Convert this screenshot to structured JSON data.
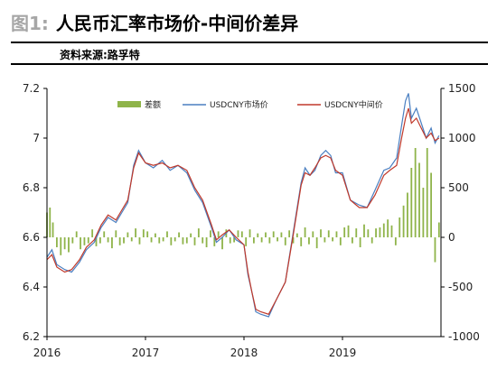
{
  "header": {
    "fig_label": "图1:",
    "title": "人民币汇率市场价-中间价差异",
    "source": "资料来源:路孚特"
  },
  "chart_data": {
    "type": "line",
    "legend": [
      "差额",
      "USDCNY市场价",
      "USDCNY中间价"
    ],
    "colors": {
      "diff": "#8fb44a",
      "market": "#4a7fc1",
      "central": "#c0392b"
    },
    "x_range": [
      2016.0,
      2020.0
    ],
    "x_ticks": [
      {
        "value": 2016,
        "label": "2016"
      },
      {
        "value": 2017,
        "label": "2017"
      },
      {
        "value": 2018,
        "label": "2018"
      },
      {
        "value": 2019,
        "label": "2019"
      }
    ],
    "y_left": {
      "ylim": [
        6.2,
        7.2
      ],
      "ticks": [
        "7.2",
        "7",
        "6.8",
        "6.6",
        "6.4",
        "6.2"
      ],
      "tick_values": [
        7.2,
        7.0,
        6.8,
        6.6,
        6.4,
        6.2
      ]
    },
    "y_right": {
      "ylim": [
        -1000,
        1500
      ],
      "ticks": [
        "1500",
        "1000",
        "500",
        "0",
        "-500",
        "-1000"
      ],
      "tick_values": [
        1500,
        1000,
        500,
        0,
        -500,
        -1000
      ]
    },
    "rate_series": {
      "x": [
        2016.0,
        2016.05,
        2016.1,
        2016.18,
        2016.25,
        2016.33,
        2016.4,
        2016.48,
        2016.55,
        2016.62,
        2016.7,
        2016.76,
        2016.82,
        2016.88,
        2016.93,
        2017.0,
        2017.08,
        2017.17,
        2017.25,
        2017.33,
        2017.42,
        2017.5,
        2017.58,
        2017.67,
        2017.72,
        2017.78,
        2017.85,
        2017.92,
        2018.0,
        2018.04,
        2018.08,
        2018.12,
        2018.17,
        2018.25,
        2018.33,
        2018.42,
        2018.5,
        2018.58,
        2018.62,
        2018.67,
        2018.72,
        2018.78,
        2018.83,
        2018.88,
        2018.93,
        2019.0,
        2019.08,
        2019.17,
        2019.25,
        2019.33,
        2019.42,
        2019.48,
        2019.55,
        2019.6,
        2019.64,
        2019.67,
        2019.7,
        2019.75,
        2019.8,
        2019.85,
        2019.9,
        2019.94,
        2019.98
      ],
      "market": [
        6.52,
        6.55,
        6.49,
        6.47,
        6.46,
        6.5,
        6.55,
        6.58,
        6.64,
        6.68,
        6.66,
        6.7,
        6.74,
        6.89,
        6.95,
        6.9,
        6.88,
        6.91,
        6.87,
        6.89,
        6.86,
        6.79,
        6.74,
        6.64,
        6.58,
        6.6,
        6.63,
        6.59,
        6.57,
        6.45,
        6.38,
        6.3,
        6.29,
        6.28,
        6.35,
        6.42,
        6.62,
        6.82,
        6.88,
        6.85,
        6.87,
        6.93,
        6.95,
        6.93,
        6.86,
        6.86,
        6.75,
        6.73,
        6.72,
        6.79,
        6.87,
        6.88,
        6.92,
        7.05,
        7.15,
        7.18,
        7.08,
        7.12,
        7.06,
        7.0,
        7.04,
        6.98,
        7.01
      ],
      "central": [
        6.51,
        6.53,
        6.48,
        6.46,
        6.47,
        6.51,
        6.56,
        6.59,
        6.65,
        6.69,
        6.67,
        6.71,
        6.75,
        6.88,
        6.94,
        6.9,
        6.89,
        6.9,
        6.88,
        6.89,
        6.87,
        6.8,
        6.75,
        6.65,
        6.59,
        6.61,
        6.63,
        6.6,
        6.57,
        6.46,
        6.38,
        6.31,
        6.3,
        6.29,
        6.35,
        6.42,
        6.61,
        6.81,
        6.86,
        6.85,
        6.88,
        6.92,
        6.93,
        6.92,
        6.87,
        6.85,
        6.75,
        6.72,
        6.72,
        6.77,
        6.85,
        6.87,
        6.89,
        7.0,
        7.08,
        7.12,
        7.06,
        7.08,
        7.04,
        7.0,
        7.02,
        6.99,
        7.0
      ]
    },
    "diff_series": {
      "x": [
        2016.0,
        2016.03,
        2016.06,
        2016.1,
        2016.14,
        2016.18,
        2016.22,
        2016.26,
        2016.3,
        2016.34,
        2016.38,
        2016.42,
        2016.46,
        2016.5,
        2016.54,
        2016.58,
        2016.62,
        2016.66,
        2016.7,
        2016.74,
        2016.78,
        2016.82,
        2016.86,
        2016.9,
        2016.94,
        2016.98,
        2017.02,
        2017.06,
        2017.1,
        2017.14,
        2017.18,
        2017.22,
        2017.26,
        2017.3,
        2017.34,
        2017.38,
        2017.42,
        2017.46,
        2017.5,
        2017.54,
        2017.58,
        2017.62,
        2017.66,
        2017.7,
        2017.74,
        2017.78,
        2017.82,
        2017.86,
        2017.9,
        2017.94,
        2017.98,
        2018.02,
        2018.06,
        2018.1,
        2018.14,
        2018.18,
        2018.22,
        2018.26,
        2018.3,
        2018.34,
        2018.38,
        2018.42,
        2018.46,
        2018.5,
        2018.54,
        2018.58,
        2018.62,
        2018.66,
        2018.7,
        2018.74,
        2018.78,
        2018.82,
        2018.86,
        2018.9,
        2018.94,
        2018.98,
        2019.02,
        2019.06,
        2019.1,
        2019.14,
        2019.18,
        2019.22,
        2019.26,
        2019.3,
        2019.34,
        2019.38,
        2019.42,
        2019.46,
        2019.5,
        2019.54,
        2019.58,
        2019.62,
        2019.66,
        2019.7,
        2019.74,
        2019.78,
        2019.82,
        2019.86,
        2019.9,
        2019.94,
        2019.98
      ],
      "values": [
        250,
        300,
        150,
        -100,
        -180,
        -120,
        -150,
        -60,
        60,
        -120,
        -80,
        -60,
        80,
        -90,
        -60,
        60,
        -50,
        -110,
        70,
        -80,
        -60,
        50,
        -40,
        90,
        -70,
        80,
        60,
        -50,
        40,
        -60,
        -40,
        60,
        -80,
        -40,
        50,
        -70,
        -60,
        40,
        -80,
        90,
        -60,
        -100,
        70,
        -90,
        60,
        -120,
        80,
        -60,
        -50,
        70,
        60,
        -90,
        80,
        -60,
        40,
        -50,
        50,
        -60,
        60,
        -40,
        50,
        -80,
        70,
        -60,
        40,
        -90,
        100,
        -70,
        60,
        -110,
        80,
        -50,
        70,
        -40,
        60,
        -80,
        100,
        120,
        -60,
        90,
        -100,
        130,
        80,
        -60,
        90,
        100,
        140,
        180,
        120,
        -80,
        200,
        320,
        450,
        700,
        900,
        750,
        500,
        900,
        650,
        -250,
        150
      ]
    }
  }
}
